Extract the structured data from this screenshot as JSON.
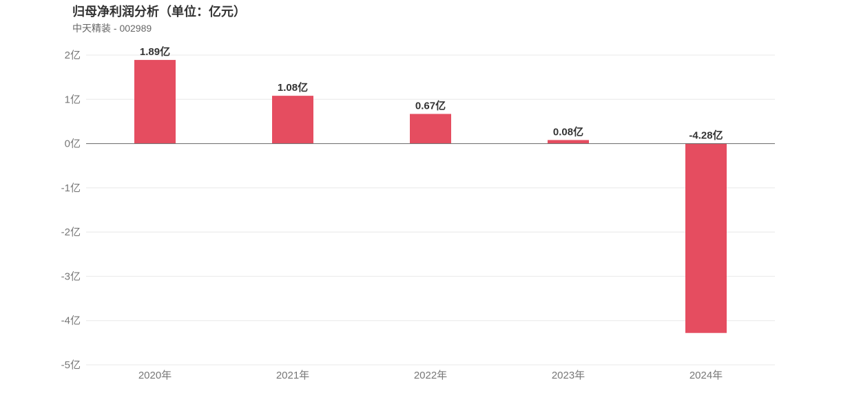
{
  "header": {
    "title": "归母净利润分析（单位：亿元）",
    "subtitle": "中天精装 - 002989"
  },
  "chart_data": {
    "type": "bar",
    "categories": [
      "2020年",
      "2021年",
      "2022年",
      "2023年",
      "2024年"
    ],
    "values": [
      1.89,
      1.08,
      0.67,
      0.08,
      -4.28
    ],
    "data_labels": [
      "1.89亿",
      "1.08亿",
      "0.67亿",
      "0.08亿",
      "-4.28亿"
    ],
    "ylim": [
      -5,
      2
    ],
    "yticks": [
      2,
      1,
      0,
      -1,
      -2,
      -3,
      -4,
      -5
    ],
    "ytick_labels": [
      "2亿",
      "1亿",
      "0亿",
      "-1亿",
      "-2亿",
      "-3亿",
      "-4亿",
      "-5亿"
    ],
    "grid": true,
    "bar_color": "#e54d60"
  }
}
